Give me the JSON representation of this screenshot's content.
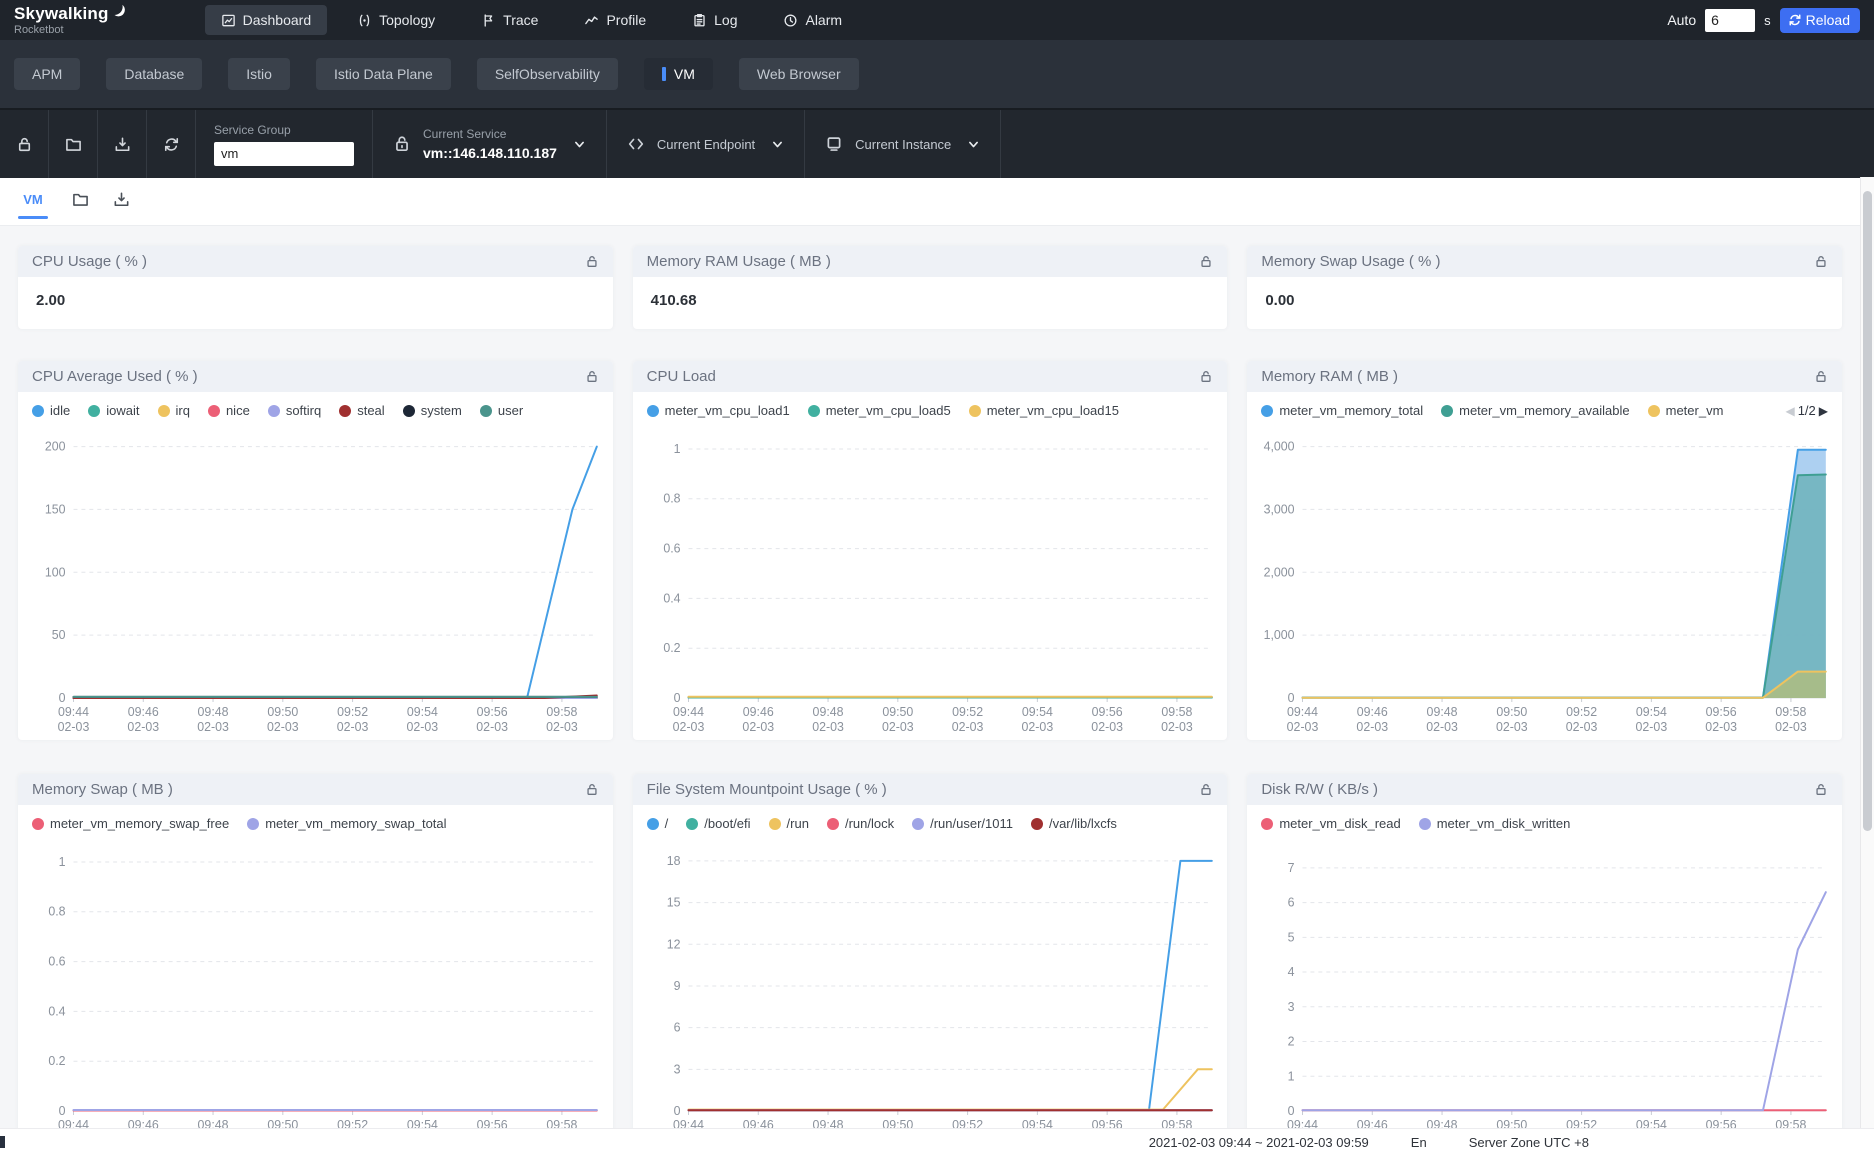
{
  "topbar": {
    "logo_title": "Skywalking",
    "logo_subtitle": "Rocketbot",
    "nav": [
      {
        "label": "Dashboard",
        "icon": "dashboard-icon",
        "active": true
      },
      {
        "label": "Topology",
        "icon": "topology-icon",
        "active": false
      },
      {
        "label": "Trace",
        "icon": "trace-icon",
        "active": false
      },
      {
        "label": "Profile",
        "icon": "profile-icon",
        "active": false
      },
      {
        "label": "Log",
        "icon": "log-icon",
        "active": false
      },
      {
        "label": "Alarm",
        "icon": "alarm-icon",
        "active": false
      }
    ],
    "auto_label": "Auto",
    "auto_value": "6",
    "auto_unit": "s",
    "reload_label": "Reload"
  },
  "dashboard_tabs": {
    "items": [
      {
        "label": "APM",
        "active": false
      },
      {
        "label": "Database",
        "active": false
      },
      {
        "label": "Istio",
        "active": false
      },
      {
        "label": "Istio Data Plane",
        "active": false
      },
      {
        "label": "SelfObservability",
        "active": false
      },
      {
        "label": "VM",
        "active": true
      },
      {
        "label": "Web Browser",
        "active": false
      }
    ]
  },
  "toolbar": {
    "icons": [
      "lock-icon",
      "folder-icon",
      "download-icon",
      "refresh-icon"
    ],
    "service_group": {
      "label": "Service Group",
      "value": "vm"
    },
    "current_service": {
      "label": "Current Service",
      "value": "vm::146.148.110.187",
      "icon": "database-icon"
    },
    "current_endpoint": {
      "label": "Current Endpoint",
      "icon": "code-icon"
    },
    "current_instance": {
      "label": "Current Instance",
      "icon": "device-icon"
    }
  },
  "page_tabs": {
    "vm_label": "VM",
    "icons": [
      "folder-icon",
      "download-icon"
    ]
  },
  "value_cards": [
    {
      "title": "CPU Usage ( % )",
      "value": "2.00"
    },
    {
      "title": "Memory RAM Usage ( MB )",
      "value": "410.68"
    },
    {
      "title": "Memory Swap Usage ( % )",
      "value": "0.00"
    }
  ],
  "axis": {
    "xtimes": [
      "09:44",
      "09:46",
      "09:48",
      "09:50",
      "09:52",
      "09:54",
      "09:56",
      "09:58"
    ],
    "xdate": "02-03"
  },
  "chart_rows": {
    "row2": [
      "cpu_average_used",
      "cpu_load",
      "memory_ram"
    ],
    "row3": [
      "memory_swap",
      "filesystem",
      "disk_rw"
    ]
  },
  "chart_data": {
    "cpu_average_used": {
      "title": "CPU Average Used ( % )",
      "type": "line",
      "ymax": 210,
      "yticks": [
        {
          "v": 200,
          "label": "200"
        },
        {
          "v": 150,
          "label": "150"
        },
        {
          "v": 100,
          "label": "100"
        },
        {
          "v": 50,
          "label": "50"
        },
        {
          "v": 0,
          "label": "0"
        }
      ],
      "series": [
        {
          "name": "idle",
          "color": "#459fe6",
          "points": [
            [
              0,
              0
            ],
            [
              13,
              0
            ],
            [
              14.3,
              150
            ],
            [
              15,
              200
            ]
          ]
        },
        {
          "name": "iowait",
          "color": "#41b0a0",
          "points": [
            [
              0,
              0
            ],
            [
              15,
              0
            ]
          ]
        },
        {
          "name": "irq",
          "color": "#eec35f",
          "points": [
            [
              0,
              0
            ],
            [
              15,
              0
            ]
          ]
        },
        {
          "name": "nice",
          "color": "#ec5f76",
          "points": [
            [
              0,
              0
            ],
            [
              15,
              0
            ]
          ]
        },
        {
          "name": "softirq",
          "color": "#9fa4e6",
          "points": [
            [
              0,
              0
            ],
            [
              15,
              0
            ]
          ]
        },
        {
          "name": "steal",
          "color": "#a03030",
          "points": [
            [
              0,
              0
            ],
            [
              13.5,
              0
            ],
            [
              15,
              2
            ]
          ]
        },
        {
          "name": "system",
          "color": "#1d2736",
          "points": [
            [
              0,
              0.9
            ],
            [
              15,
              0.9
            ]
          ]
        },
        {
          "name": "user",
          "color": "#4a948c",
          "points": [
            [
              0,
              0.9
            ],
            [
              15,
              0.9
            ]
          ]
        }
      ]
    },
    "cpu_load": {
      "title": "CPU Load",
      "type": "line",
      "ymax": 1.06,
      "yticks": [
        {
          "v": 1,
          "label": "1"
        },
        {
          "v": 0.8,
          "label": "0.8"
        },
        {
          "v": 0.6,
          "label": "0.6"
        },
        {
          "v": 0.4,
          "label": "0.4"
        },
        {
          "v": 0.2,
          "label": "0.2"
        },
        {
          "v": 0,
          "label": "0"
        }
      ],
      "series": [
        {
          "name": "meter_vm_cpu_load1",
          "color": "#459fe6",
          "points": [
            [
              0,
              0.002
            ],
            [
              15,
              0.002
            ]
          ]
        },
        {
          "name": "meter_vm_cpu_load5",
          "color": "#41b0a0",
          "points": [
            [
              0,
              0.002
            ],
            [
              15,
              0.002
            ]
          ]
        },
        {
          "name": "meter_vm_cpu_load15",
          "color": "#eec35f",
          "points": [
            [
              0,
              0.005
            ],
            [
              15,
              0.005
            ]
          ]
        }
      ]
    },
    "memory_ram": {
      "title": "Memory RAM ( MB )",
      "type": "area",
      "ymax": 4200,
      "pager": {
        "left": "◀",
        "text": "1/2",
        "right": "▶"
      },
      "yticks": [
        {
          "v": 4000,
          "label": "4,000"
        },
        {
          "v": 3000,
          "label": "3,000"
        },
        {
          "v": 2000,
          "label": "2,000"
        },
        {
          "v": 1000,
          "label": "1,000"
        },
        {
          "v": 0,
          "label": "0"
        }
      ],
      "series": [
        {
          "name": "meter_vm_memory_total",
          "color": "#459fe6",
          "fill": "#a9cdf0",
          "fillOpacity": 0.95,
          "points": [
            [
              0,
              8
            ],
            [
              13.2,
              8
            ],
            [
              14.2,
              3950
            ],
            [
              15,
              3950
            ]
          ]
        },
        {
          "name": "meter_vm_memory_available",
          "color": "#3f9f93",
          "fill": "#72b4bf",
          "fillOpacity": 0.92,
          "points": [
            [
              0,
              5
            ],
            [
              13.2,
              5
            ],
            [
              14.2,
              3545
            ],
            [
              15,
              3555
            ]
          ]
        },
        {
          "name": "meter_vm",
          "color": "#eec35f",
          "fill": "#aebd80",
          "fillOpacity": 0.85,
          "points": [
            [
              0,
              4
            ],
            [
              13.2,
              4
            ],
            [
              14.2,
              420
            ],
            [
              15,
              420
            ]
          ]
        }
      ]
    },
    "memory_swap": {
      "title": "Memory Swap ( MB )",
      "type": "line",
      "ymax": 1.06,
      "yticks": [
        {
          "v": 1,
          "label": "1"
        },
        {
          "v": 0.8,
          "label": "0.8"
        },
        {
          "v": 0.6,
          "label": "0.6"
        },
        {
          "v": 0.4,
          "label": "0.4"
        },
        {
          "v": 0.2,
          "label": "0.2"
        },
        {
          "v": 0,
          "label": "0"
        }
      ],
      "series": [
        {
          "name": "meter_vm_memory_swap_free",
          "color": "#ec5f76",
          "points": [
            [
              0,
              0.002
            ],
            [
              15,
              0.002
            ]
          ]
        },
        {
          "name": "meter_vm_memory_swap_total",
          "color": "#9fa4e6",
          "points": [
            [
              0,
              0.004
            ],
            [
              15,
              0.004
            ]
          ]
        }
      ]
    },
    "filesystem": {
      "title": "File System Mountpoint Usage ( % )",
      "type": "line",
      "ymax": 19,
      "yticks": [
        {
          "v": 18,
          "label": "18"
        },
        {
          "v": 15,
          "label": "15"
        },
        {
          "v": 12,
          "label": "12"
        },
        {
          "v": 9,
          "label": "9"
        },
        {
          "v": 6,
          "label": "6"
        },
        {
          "v": 3,
          "label": "3"
        },
        {
          "v": 0,
          "label": "0"
        }
      ],
      "series": [
        {
          "name": "/",
          "color": "#459fe6",
          "points": [
            [
              0,
              0.05
            ],
            [
              13.2,
              0.05
            ],
            [
              14.1,
              18
            ],
            [
              15,
              18
            ]
          ]
        },
        {
          "name": "/boot/efi",
          "color": "#41b0a0",
          "points": [
            [
              0,
              0.05
            ],
            [
              15,
              0.05
            ]
          ]
        },
        {
          "name": "/run",
          "color": "#eec35f",
          "points": [
            [
              0,
              0.1
            ],
            [
              13.6,
              0.1
            ],
            [
              14.6,
              3
            ],
            [
              15,
              3
            ]
          ]
        },
        {
          "name": "/run/lock",
          "color": "#ec5f76",
          "points": [
            [
              0,
              0.05
            ],
            [
              15,
              0.05
            ]
          ]
        },
        {
          "name": "/run/user/1011",
          "color": "#9fa4e6",
          "points": [
            [
              0,
              0.05
            ],
            [
              15,
              0.05
            ]
          ]
        },
        {
          "name": "/var/lib/lxcfs",
          "color": "#a03030",
          "points": [
            [
              0,
              0.05
            ],
            [
              15,
              0.05
            ]
          ]
        }
      ]
    },
    "disk_rw": {
      "title": "Disk R/W ( KB/s )",
      "type": "line",
      "ymax": 7.6,
      "yticks": [
        {
          "v": 7,
          "label": "7"
        },
        {
          "v": 6,
          "label": "6"
        },
        {
          "v": 5,
          "label": "5"
        },
        {
          "v": 4,
          "label": "4"
        },
        {
          "v": 3,
          "label": "3"
        },
        {
          "v": 2,
          "label": "2"
        },
        {
          "v": 1,
          "label": "1"
        },
        {
          "v": 0,
          "label": "0"
        }
      ],
      "series": [
        {
          "name": "meter_vm_disk_read",
          "color": "#ec5f76",
          "points": [
            [
              0,
              0.02
            ],
            [
              15,
              0.02
            ]
          ]
        },
        {
          "name": "meter_vm_disk_written",
          "color": "#9fa4e6",
          "points": [
            [
              0,
              0.02
            ],
            [
              13.2,
              0.02
            ],
            [
              14.2,
              4.65
            ],
            [
              15,
              6.3
            ]
          ]
        }
      ]
    }
  },
  "footer": {
    "time_range": "2021-02-03 09:44 ~ 2021-02-03 09:59",
    "lang": "En",
    "server_zone": "Server Zone UTC +8"
  }
}
